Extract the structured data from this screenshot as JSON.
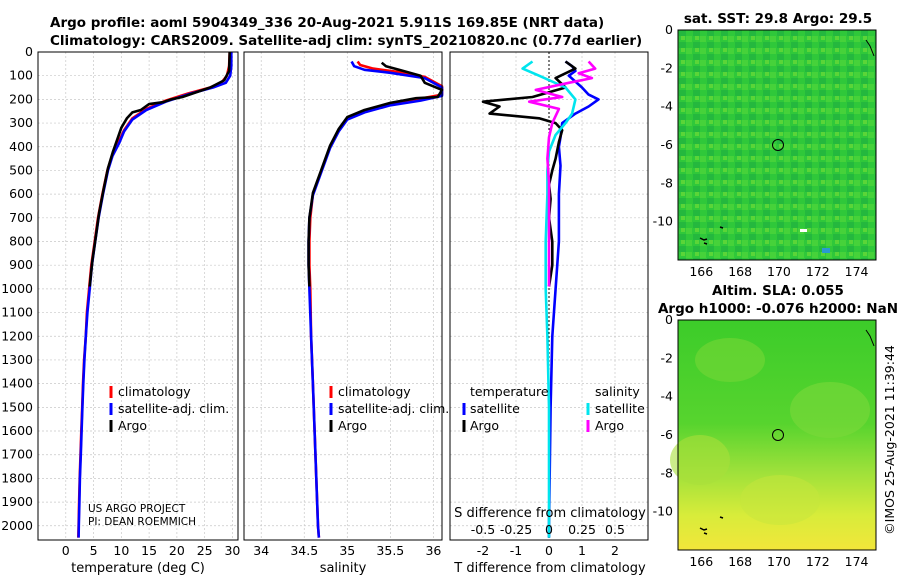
{
  "title": {
    "line1": "Argo profile: aoml 5904349_336 20-Aug-2021 5.911S 169.85E (NRT data)",
    "line2": "Climatology: CARS2009. Satellite-adj clim: synTS_20210820.nc (0.77d earlier)"
  },
  "credits": {
    "line1": "US ARGO PROJECT",
    "line2": "PI: DEAN ROEMMICH"
  },
  "timestamp": "©IMOS 25-Aug-2021 11:39:44",
  "colors": {
    "climatology": "#ff0000",
    "satellite": "#0000ff",
    "argo": "#000000",
    "sat_t_diff": "#00e5ee",
    "sat_s_diff": "#ff00ff",
    "grid": "#c8c8c8"
  },
  "chart_data": [
    {
      "type": "line",
      "panel": "temperature",
      "xlabel": "temperature (deg C)",
      "xlim": [
        -5,
        31
      ],
      "xticks": [
        0,
        5,
        10,
        15,
        20,
        25,
        30
      ],
      "ylim": [
        2060,
        0
      ],
      "yticks": [
        0,
        100,
        200,
        300,
        400,
        500,
        600,
        700,
        800,
        900,
        1000,
        1100,
        1200,
        1300,
        1400,
        1500,
        1600,
        1700,
        1800,
        1900,
        2000
      ],
      "legend": [
        "climatology",
        "satellite-adj. clim.",
        "Argo"
      ],
      "series": [
        {
          "name": "climatology",
          "color": "#ff0000",
          "points": [
            [
              29.5,
              0
            ],
            [
              29.4,
              60
            ],
            [
              29.0,
              100
            ],
            [
              28.0,
              130
            ],
            [
              26.0,
              150
            ],
            [
              22.0,
              175
            ],
            [
              18.0,
              205
            ],
            [
              14.5,
              240
            ],
            [
              12.0,
              280
            ],
            [
              10.5,
              330
            ],
            [
              9.5,
              380
            ],
            [
              8.3,
              440
            ],
            [
              7.5,
              500
            ],
            [
              6.6,
              600
            ],
            [
              5.8,
              700
            ],
            [
              5.2,
              800
            ],
            [
              4.6,
              900
            ],
            [
              4.2,
              1000
            ],
            [
              3.8,
              1100
            ],
            [
              3.6,
              1200
            ],
            [
              3.3,
              1300
            ],
            [
              3.1,
              1400
            ],
            [
              2.95,
              1500
            ],
            [
              2.8,
              1600
            ],
            [
              2.65,
              1700
            ],
            [
              2.5,
              1800
            ],
            [
              2.4,
              1900
            ],
            [
              2.3,
              2000
            ],
            [
              2.25,
              2050
            ]
          ]
        },
        {
          "name": "satellite",
          "color": "#0000ff",
          "points": [
            [
              29.8,
              0
            ],
            [
              29.8,
              60
            ],
            [
              29.6,
              100
            ],
            [
              28.8,
              130
            ],
            [
              26.5,
              150
            ],
            [
              22.5,
              175
            ],
            [
              18.0,
              210
            ],
            [
              14.5,
              245
            ],
            [
              12.0,
              285
            ],
            [
              10.5,
              335
            ],
            [
              9.6,
              385
            ],
            [
              8.4,
              440
            ],
            [
              7.6,
              500
            ],
            [
              6.7,
              600
            ],
            [
              5.9,
              700
            ],
            [
              5.3,
              800
            ],
            [
              4.7,
              900
            ],
            [
              4.3,
              1000
            ],
            [
              3.9,
              1100
            ],
            [
              3.6,
              1200
            ],
            [
              3.35,
              1300
            ],
            [
              3.15,
              1400
            ],
            [
              3.0,
              1500
            ],
            [
              2.85,
              1600
            ],
            [
              2.7,
              1700
            ],
            [
              2.55,
              1800
            ],
            [
              2.45,
              1900
            ],
            [
              2.35,
              2000
            ],
            [
              2.3,
              2050
            ]
          ]
        },
        {
          "name": "Argo",
          "color": "#000000",
          "points": [
            [
              29.5,
              0
            ],
            [
              29.4,
              80
            ],
            [
              28.5,
              120
            ],
            [
              26.0,
              150
            ],
            [
              21.0,
              190
            ],
            [
              19.0,
              200
            ],
            [
              17.5,
              212
            ],
            [
              15.0,
              220
            ],
            [
              13.5,
              245
            ],
            [
              12.0,
              255
            ],
            [
              11.0,
              280
            ],
            [
              10.0,
              320
            ],
            [
              9.4,
              360
            ],
            [
              8.5,
              420
            ],
            [
              7.6,
              490
            ],
            [
              6.8,
              580
            ],
            [
              6.0,
              680
            ],
            [
              5.4,
              780
            ],
            [
              4.8,
              880
            ],
            [
              4.3,
              990
            ]
          ]
        }
      ]
    },
    {
      "type": "line",
      "panel": "salinity",
      "xlabel": "salinity",
      "xlim": [
        33.8,
        36.1
      ],
      "xticks": [
        34,
        34.5,
        35,
        35.5,
        36
      ],
      "legend": [
        "climatology",
        "satellite-adj. clim.",
        "Argo"
      ],
      "series": [
        {
          "name": "climatology",
          "color": "#ff0000",
          "points": [
            [
              35.12,
              40
            ],
            [
              35.15,
              55
            ],
            [
              35.3,
              70
            ],
            [
              35.6,
              85
            ],
            [
              35.9,
              105
            ],
            [
              36.1,
              145
            ],
            [
              36.1,
              180
            ],
            [
              35.8,
              200
            ],
            [
              35.5,
              220
            ],
            [
              35.2,
              250
            ],
            [
              35.0,
              280
            ],
            [
              34.9,
              330
            ],
            [
              34.8,
              400
            ],
            [
              34.7,
              500
            ],
            [
              34.6,
              600
            ],
            [
              34.57,
              700
            ],
            [
              34.56,
              800
            ],
            [
              34.56,
              900
            ],
            [
              34.57,
              1000
            ],
            [
              34.58,
              1200
            ],
            [
              34.6,
              1400
            ],
            [
              34.62,
              1600
            ],
            [
              34.64,
              1800
            ],
            [
              34.66,
              2000
            ],
            [
              34.67,
              2050
            ]
          ]
        },
        {
          "name": "satellite",
          "color": "#0000ff",
          "points": [
            [
              35.05,
              40
            ],
            [
              35.08,
              60
            ],
            [
              35.2,
              75
            ],
            [
              35.5,
              88
            ],
            [
              35.9,
              110
            ],
            [
              36.1,
              150
            ],
            [
              36.1,
              185
            ],
            [
              35.85,
              205
            ],
            [
              35.5,
              225
            ],
            [
              35.2,
              255
            ],
            [
              35.0,
              285
            ],
            [
              34.9,
              335
            ],
            [
              34.8,
              405
            ],
            [
              34.7,
              505
            ],
            [
              34.6,
              605
            ],
            [
              34.56,
              700
            ],
            [
              34.55,
              800
            ],
            [
              34.55,
              900
            ],
            [
              34.56,
              1000
            ],
            [
              34.58,
              1200
            ],
            [
              34.6,
              1400
            ],
            [
              34.62,
              1600
            ],
            [
              34.64,
              1800
            ],
            [
              34.66,
              2000
            ],
            [
              34.67,
              2050
            ]
          ]
        },
        {
          "name": "Argo",
          "color": "#000000",
          "points": [
            [
              35.4,
              45
            ],
            [
              35.45,
              60
            ],
            [
              35.6,
              75
            ],
            [
              35.85,
              100
            ],
            [
              35.9,
              130
            ],
            [
              36.1,
              160
            ],
            [
              36.05,
              190
            ],
            [
              35.8,
              195
            ],
            [
              35.5,
              215
            ],
            [
              35.2,
              245
            ],
            [
              35.0,
              275
            ],
            [
              34.9,
              325
            ],
            [
              34.8,
              395
            ],
            [
              34.7,
              495
            ],
            [
              34.6,
              595
            ],
            [
              34.56,
              700
            ],
            [
              34.55,
              800
            ],
            [
              34.55,
              900
            ],
            [
              34.56,
              990
            ]
          ]
        }
      ]
    },
    {
      "type": "line",
      "panel": "difference",
      "xlabel": "T difference from climatology",
      "xlabel_top": "S difference from climatology",
      "xlim": [
        -3,
        3
      ],
      "xticks": [
        -2,
        -1,
        0,
        1,
        2
      ],
      "xticklabels_s": [
        "-0.5",
        "-0.25",
        "0",
        "0.25",
        "0.5"
      ],
      "legend_left": [
        "temperature",
        "satellite",
        "Argo"
      ],
      "legend_right": [
        "salinity",
        "satellite",
        "Argo"
      ],
      "series": [
        {
          "name": "T satellite",
          "color": "#0000ff",
          "points": [
            [
              0.5,
              40
            ],
            [
              0.7,
              60
            ],
            [
              0.8,
              80
            ],
            [
              0.6,
              100
            ],
            [
              1.0,
              150
            ],
            [
              1.2,
              180
            ],
            [
              1.5,
              200
            ],
            [
              1.2,
              230
            ],
            [
              0.8,
              260
            ],
            [
              0.4,
              300
            ],
            [
              0.35,
              360
            ],
            [
              0.3,
              400
            ],
            [
              0.35,
              480
            ],
            [
              0.3,
              600
            ],
            [
              0.3,
              800
            ],
            [
              0.2,
              1000
            ],
            [
              0.1,
              1200
            ],
            [
              0.05,
              1500
            ],
            [
              0.0,
              2000
            ],
            [
              0.0,
              2050
            ]
          ]
        },
        {
          "name": "T Argo",
          "color": "#000000",
          "points": [
            [
              0.5,
              40
            ],
            [
              0.8,
              70
            ],
            [
              0.2,
              110
            ],
            [
              0.5,
              150
            ],
            [
              -0.5,
              190
            ],
            [
              -2.0,
              210
            ],
            [
              -1.5,
              230
            ],
            [
              -1.8,
              260
            ],
            [
              -0.3,
              280
            ],
            [
              0.2,
              300
            ],
            [
              0.4,
              330
            ],
            [
              0.3,
              380
            ],
            [
              0.2,
              450
            ],
            [
              0.1,
              500
            ],
            [
              0.0,
              560
            ],
            [
              0.05,
              620
            ],
            [
              0.0,
              700
            ],
            [
              0.1,
              800
            ],
            [
              0.1,
              900
            ],
            [
              0.0,
              990
            ]
          ]
        },
        {
          "name": "S satellite",
          "color": "#00e5ee",
          "points": [
            [
              -0.5,
              40
            ],
            [
              -0.8,
              70
            ],
            [
              -0.3,
              100
            ],
            [
              0.5,
              150
            ],
            [
              0.8,
              200
            ],
            [
              0.7,
              260
            ],
            [
              0.5,
              300
            ],
            [
              0.2,
              350
            ],
            [
              0.0,
              420
            ],
            [
              -0.05,
              500
            ],
            [
              -0.05,
              600
            ],
            [
              -0.1,
              800
            ],
            [
              -0.1,
              1000
            ],
            [
              -0.05,
              1200
            ],
            [
              0.0,
              1500
            ],
            [
              0.0,
              2050
            ]
          ]
        },
        {
          "name": "S Argo",
          "color": "#ff00ff",
          "points": [
            [
              1.2,
              40
            ],
            [
              1.4,
              70
            ],
            [
              0.9,
              90
            ],
            [
              1.3,
              110
            ],
            [
              0.6,
              130
            ],
            [
              -0.4,
              160
            ],
            [
              0.4,
              190
            ],
            [
              -0.6,
              210
            ],
            [
              0.3,
              240
            ],
            [
              0.1,
              300
            ],
            [
              0.0,
              360
            ],
            [
              -0.05,
              450
            ],
            [
              0.0,
              550
            ],
            [
              0.0,
              700
            ],
            [
              0.0,
              990
            ]
          ]
        }
      ]
    },
    {
      "type": "heatmap",
      "panel": "sst_map",
      "title": "sat. SST: 29.8 Argo: 29.5",
      "xlim": [
        164.8,
        175
      ],
      "ylim": [
        -12,
        0
      ],
      "xticks": [
        166,
        168,
        170,
        172,
        174
      ],
      "yticks": [
        0,
        -2,
        -4,
        -6,
        -8,
        -10
      ],
      "profile_location": [
        169.85,
        -5.911
      ]
    },
    {
      "type": "heatmap",
      "panel": "sla_map",
      "title_line1": "Altim. SLA: 0.055",
      "title_line2": "Argo h1000: -0.076 h2000: NaN",
      "xlim": [
        164.8,
        175
      ],
      "ylim": [
        -12,
        0
      ],
      "xticks": [
        166,
        168,
        170,
        172,
        174
      ],
      "yticks": [
        0,
        -2,
        -4,
        -6,
        -8,
        -10
      ],
      "profile_location": [
        169.85,
        -5.911
      ]
    }
  ]
}
